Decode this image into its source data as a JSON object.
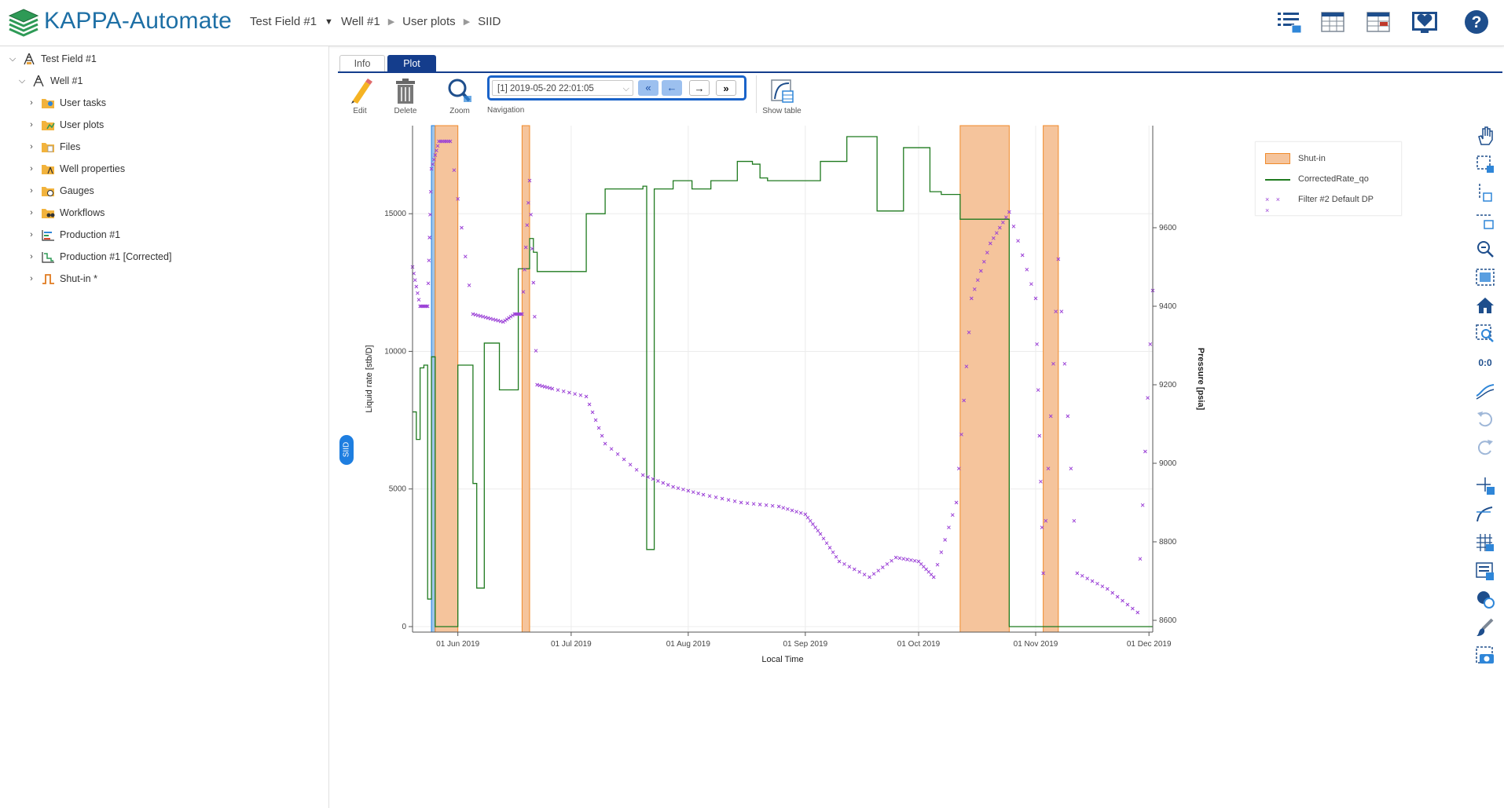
{
  "header": {
    "app_title": "KAPPA-Automate",
    "breadcrumb": [
      "Test Field #1",
      "Well #1",
      "User plots",
      "SIID"
    ],
    "icons": [
      "task-list-icon",
      "grid-view-icon",
      "grid-view-alt-icon",
      "heart-monitor-icon",
      "help-icon"
    ],
    "help_label": "?"
  },
  "sidebar": {
    "items": [
      {
        "label": "Test Field #1",
        "icon": "field-icon",
        "expanded": true,
        "level": 0
      },
      {
        "label": "Well #1",
        "icon": "well-icon",
        "expanded": true,
        "level": 1
      },
      {
        "label": "User tasks",
        "icon": "user-tasks-folder-icon",
        "expanded": false,
        "level": 2
      },
      {
        "label": "User plots",
        "icon": "user-plots-folder-icon",
        "expanded": false,
        "level": 2
      },
      {
        "label": "Files",
        "icon": "files-folder-icon",
        "expanded": false,
        "level": 2
      },
      {
        "label": "Well properties",
        "icon": "well-properties-folder-icon",
        "expanded": false,
        "level": 2
      },
      {
        "label": "Gauges",
        "icon": "gauges-folder-icon",
        "expanded": false,
        "level": 2
      },
      {
        "label": "Workflows",
        "icon": "workflows-folder-icon",
        "expanded": false,
        "level": 2
      },
      {
        "label": "Production #1",
        "icon": "production-icon",
        "expanded": false,
        "level": 2
      },
      {
        "label": "Production #1 [Corrected]",
        "icon": "production-corrected-icon",
        "expanded": false,
        "level": 2
      },
      {
        "label": "Shut-in *",
        "icon": "shut-in-icon",
        "expanded": false,
        "level": 2
      }
    ]
  },
  "tabs": [
    {
      "label": "Info",
      "active": false
    },
    {
      "label": "Plot",
      "active": true
    }
  ],
  "toolbar": {
    "edit_label": "Edit",
    "delete_label": "Delete",
    "zoom_label": "Zoom",
    "navigation_label": "Navigation",
    "show_table_label": "Show table",
    "navigation": {
      "selected": "[1] 2019-05-20 22:01:05",
      "buttons": [
        "«",
        "←",
        "→",
        "»"
      ]
    }
  },
  "plot": {
    "side_label": "SIID",
    "legend": [
      {
        "label": "Shut-in",
        "color": "#f5c49c"
      },
      {
        "label": "CorrectedRate_qo",
        "color": "#1f7a1f"
      },
      {
        "label": "Filter #2 Default DP",
        "color": "#9a3fd6"
      }
    ],
    "colors": {
      "shut_in_fill": "#f5c49c",
      "shut_in_edge": "#f08a2a",
      "selected_fill": "#9fc5ea",
      "selected_edge": "#1e7ee0",
      "rate": "#1f7a1f",
      "pressure": "#9a3fd6"
    }
  },
  "chart_data": {
    "type": "line",
    "xlabel": "Local Time",
    "ylabel": "Liquid rate [stb/D]",
    "y2label": "Pressure [psia]",
    "x_ticks": [
      "01 Jun 2019",
      "01 Jul 2019",
      "01 Aug 2019",
      "01 Sep 2019",
      "01 Oct 2019",
      "01 Nov 2019",
      "01 Dec 2019"
    ],
    "xlim": [
      "2019-05-20",
      "2019-12-02"
    ],
    "y_ticks": [
      0,
      5000,
      10000,
      15000
    ],
    "ylim": [
      -200,
      18200
    ],
    "y2_ticks": [
      8600,
      8800,
      9000,
      9200,
      9400,
      9600
    ],
    "y2lim": [
      8570,
      9860
    ],
    "shut_in_periods": [
      [
        "2019-05-26",
        "2019-06-01"
      ],
      [
        "2019-06-18",
        "2019-06-20"
      ],
      [
        "2019-10-12",
        "2019-10-25"
      ],
      [
        "2019-11-03",
        "2019-11-07"
      ]
    ],
    "selected_period": [
      "2019-05-25",
      "2019-05-26"
    ],
    "series": [
      {
        "name": "CorrectedRate_qo",
        "style": "step",
        "x": [
          "2019-05-20",
          "2019-05-21",
          "2019-05-22",
          "2019-05-23",
          "2019-05-24",
          "2019-05-25",
          "2019-05-26",
          "2019-05-27",
          "2019-06-01",
          "2019-06-01",
          "2019-06-05",
          "2019-06-06",
          "2019-06-08",
          "2019-06-12",
          "2019-06-17",
          "2019-06-20",
          "2019-06-21",
          "2019-06-22",
          "2019-06-26",
          "2019-07-05",
          "2019-07-10",
          "2019-07-20",
          "2019-07-21",
          "2019-07-23",
          "2019-07-28",
          "2019-08-02",
          "2019-08-07",
          "2019-08-14",
          "2019-08-18",
          "2019-08-20",
          "2019-08-22",
          "2019-08-25",
          "2019-09-05",
          "2019-09-10",
          "2019-09-12",
          "2019-09-20",
          "2019-09-27",
          "2019-10-02",
          "2019-10-04",
          "2019-10-07",
          "2019-10-12",
          "2019-10-25",
          "2019-10-26",
          "2019-11-03",
          "2019-11-07",
          "2019-11-15",
          "2019-12-02"
        ],
        "y": [
          7800,
          6800,
          9400,
          9500,
          1000,
          9800,
          0,
          0,
          9500,
          9500,
          5200,
          1400,
          10300,
          8600,
          13000,
          14100,
          13600,
          12900,
          12900,
          15000,
          15900,
          16000,
          2800,
          15900,
          16200,
          15900,
          16200,
          16900,
          16800,
          16300,
          16200,
          16200,
          16900,
          16900,
          17800,
          15100,
          17400,
          17400,
          15800,
          15700,
          14800,
          0,
          0,
          0,
          0,
          0,
          0
        ]
      },
      {
        "name": "Filter #2 Default DP",
        "style": "markers",
        "axis": "y2",
        "x": [
          "2019-05-20",
          "2019-05-22",
          "2019-05-24",
          "2019-05-25",
          "2019-05-27",
          "2019-05-30",
          "2019-06-05",
          "2019-06-09",
          "2019-06-13",
          "2019-06-16",
          "2019-06-18",
          "2019-06-20",
          "2019-06-22",
          "2019-06-26",
          "2019-07-05",
          "2019-07-10",
          "2019-07-20",
          "2019-07-28",
          "2019-08-05",
          "2019-08-15",
          "2019-08-25",
          "2019-09-01",
          "2019-09-05",
          "2019-09-10",
          "2019-09-18",
          "2019-09-25",
          "2019-10-01",
          "2019-10-05",
          "2019-10-11",
          "2019-10-15",
          "2019-10-20",
          "2019-10-25",
          "2019-11-01",
          "2019-11-03",
          "2019-11-07",
          "2019-11-12",
          "2019-11-20",
          "2019-11-28",
          "2019-12-02"
        ],
        "y": [
          9500,
          9400,
          9400,
          9750,
          9820,
          9820,
          9380,
          9370,
          9360,
          9380,
          9380,
          9720,
          9200,
          9190,
          9170,
          9050,
          8970,
          8940,
          8920,
          8900,
          8890,
          8870,
          8820,
          8750,
          8710,
          8760,
          8750,
          8710,
          8900,
          9420,
          9560,
          9640,
          9420,
          8720,
          9520,
          8720,
          8680,
          8620,
          9440
        ]
      }
    ]
  }
}
